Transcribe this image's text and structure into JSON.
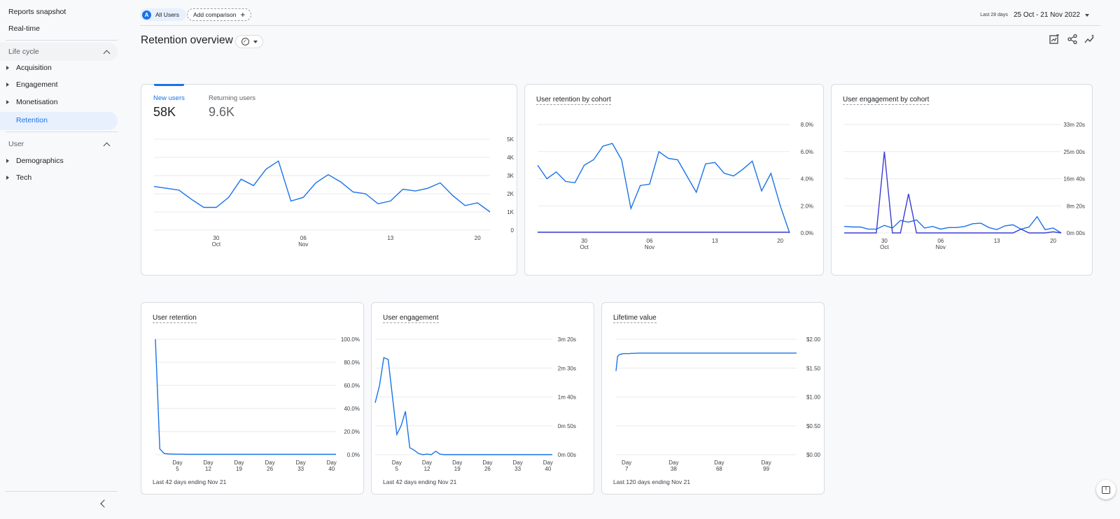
{
  "sidebar": {
    "top_items": [
      {
        "label": "Reports snapshot"
      },
      {
        "label": "Real-time"
      }
    ],
    "lifecycle": {
      "label": "Life cycle",
      "items": [
        {
          "label": "Acquisition"
        },
        {
          "label": "Engagement"
        },
        {
          "label": "Monetisation"
        },
        {
          "label": "Retention"
        }
      ]
    },
    "user": {
      "label": "User",
      "items": [
        {
          "label": "Demographics"
        },
        {
          "label": "Tech"
        }
      ]
    },
    "active_item": "Retention"
  },
  "header": {
    "segment_letter": "A",
    "segment_label": "All Users",
    "add_comparison": "Add comparison",
    "date_prefix": "Last 28 days",
    "date_range": "25 Oct - 21 Nov 2022"
  },
  "page": {
    "title": "Retention overview"
  },
  "icons": [
    "customize-report-icon",
    "share-icon",
    "insights-icon"
  ],
  "colors": {
    "accent": "#1a73e8",
    "secondary_series": "#3b3bd6",
    "active_nav_bg": "#e8f0fe"
  },
  "cards": {
    "users": {
      "tabs": [
        {
          "label": "New users",
          "value": "58K"
        },
        {
          "label": "Returning users",
          "value": "9.6K"
        }
      ],
      "active_tab": "New users"
    },
    "cohort_retention": {
      "title": "User retention by cohort"
    },
    "cohort_engagement": {
      "title": "User engagement by cohort"
    },
    "user_retention": {
      "title": "User retention",
      "footer": "Last 42 days ending Nov 21"
    },
    "user_engagement": {
      "title": "User engagement",
      "footer": "Last 42 days ending Nov 21"
    },
    "lifetime_value": {
      "title": "Lifetime value",
      "footer": "Last 120 days ending Nov 21"
    }
  },
  "chart_data": [
    {
      "id": "new_users",
      "type": "line",
      "title": "",
      "x_ticks": [
        {
          "i": 5,
          "label": "30",
          "sub": "Oct"
        },
        {
          "i": 12,
          "label": "06",
          "sub": "Nov"
        },
        {
          "i": 19,
          "label": "13",
          "sub": ""
        },
        {
          "i": 26,
          "label": "20",
          "sub": ""
        }
      ],
      "y_ticks": [
        {
          "v": 0,
          "label": "0"
        },
        {
          "v": 1000,
          "label": "1K"
        },
        {
          "v": 2000,
          "label": "2K"
        },
        {
          "v": 3000,
          "label": "3K"
        },
        {
          "v": 4000,
          "label": "4K"
        },
        {
          "v": 5000,
          "label": "5K"
        }
      ],
      "ylim": [
        0,
        5000
      ],
      "series": [
        {
          "values": [
            2400,
            2300,
            2200,
            1700,
            1250,
            1250,
            1800,
            2800,
            2450,
            3350,
            3800,
            1600,
            1800,
            2600,
            3050,
            2650,
            2100,
            2000,
            1450,
            1600,
            2250,
            2150,
            2300,
            2600,
            1900,
            1350,
            1500,
            1000
          ]
        }
      ]
    },
    {
      "id": "cohort_retention",
      "type": "line",
      "title": "User retention by cohort",
      "x_ticks": [
        {
          "i": 5,
          "label": "30",
          "sub": "Oct"
        },
        {
          "i": 12,
          "label": "06",
          "sub": "Nov"
        },
        {
          "i": 19,
          "label": "13",
          "sub": ""
        },
        {
          "i": 26,
          "label": "20",
          "sub": ""
        }
      ],
      "y_ticks": [
        {
          "v": 0,
          "label": "0.0%"
        },
        {
          "v": 2,
          "label": "2.0%"
        },
        {
          "v": 4,
          "label": "4.0%"
        },
        {
          "v": 6,
          "label": "6.0%"
        },
        {
          "v": 8,
          "label": "8.0%"
        }
      ],
      "ylim": [
        0,
        8
      ],
      "series": [
        {
          "values": [
            5.0,
            4.0,
            4.5,
            3.8,
            3.7,
            5.0,
            5.4,
            6.4,
            6.6,
            5.4,
            1.8,
            3.5,
            3.6,
            6.0,
            5.5,
            5.4,
            4.2,
            3.0,
            5.1,
            5.2,
            4.4,
            4.2,
            4.7,
            5.3,
            3.1,
            4.4,
            2.0,
            0
          ]
        },
        {
          "values": [
            0.05,
            0.05,
            0.05,
            0.05,
            0.05,
            0.05,
            0.05,
            0.05,
            0.05,
            0.05,
            0.05,
            0.05,
            0.05,
            0.05,
            0.05,
            0.05,
            0.05,
            0.05,
            0.05,
            0.05,
            0.05,
            0.05,
            0.05,
            0.05,
            0.05,
            0.05,
            0.05,
            0.05
          ]
        }
      ]
    },
    {
      "id": "cohort_engagement",
      "type": "line",
      "title": "User engagement by cohort",
      "x_ticks": [
        {
          "i": 5,
          "label": "30",
          "sub": "Oct"
        },
        {
          "i": 12,
          "label": "06",
          "sub": "Nov"
        },
        {
          "i": 19,
          "label": "13",
          "sub": ""
        },
        {
          "i": 26,
          "label": "20",
          "sub": ""
        }
      ],
      "y_ticks": [
        {
          "v": 0,
          "label": "0m 00s"
        },
        {
          "v": 500,
          "label": "8m 20s"
        },
        {
          "v": 1000,
          "label": "16m 40s"
        },
        {
          "v": 1500,
          "label": "25m 00s"
        },
        {
          "v": 2000,
          "label": "33m 20s"
        }
      ],
      "ylim": [
        0,
        2000
      ],
      "series": [
        {
          "values": [
            120,
            110,
            110,
            70,
            70,
            140,
            90,
            230,
            200,
            240,
            90,
            120,
            70,
            100,
            100,
            120,
            170,
            180,
            100,
            60,
            130,
            150,
            70,
            110,
            300,
            60,
            90,
            0
          ]
        },
        {
          "values": [
            0,
            0,
            0,
            0,
            0,
            1500,
            0,
            0,
            720,
            0,
            0,
            0,
            0,
            0,
            0,
            0,
            0,
            0,
            0,
            0,
            0,
            0,
            70,
            0,
            0,
            0,
            20,
            0
          ]
        }
      ]
    },
    {
      "id": "user_retention",
      "type": "line",
      "title": "User retention",
      "x_ticks": [
        {
          "i": 5,
          "label": "Day",
          "sub": "5"
        },
        {
          "i": 12,
          "label": "Day",
          "sub": "12"
        },
        {
          "i": 19,
          "label": "Day",
          "sub": "19"
        },
        {
          "i": 26,
          "label": "Day",
          "sub": "26"
        },
        {
          "i": 33,
          "label": "Day",
          "sub": "33"
        },
        {
          "i": 40,
          "label": "Day",
          "sub": "40"
        }
      ],
      "y_ticks": [
        {
          "v": 0,
          "label": "0.0%"
        },
        {
          "v": 20,
          "label": "20.0%"
        },
        {
          "v": 40,
          "label": "40.0%"
        },
        {
          "v": 60,
          "label": "60.0%"
        },
        {
          "v": 80,
          "label": "80.0%"
        },
        {
          "v": 100,
          "label": "100.0%"
        }
      ],
      "ylim": [
        0,
        100
      ],
      "x_count": 42,
      "series": [
        {
          "values": [
            100,
            5,
            1,
            0.6,
            0.5,
            0.4,
            0.4,
            0.3,
            0.3,
            0.3,
            0.3,
            0.3,
            0.3,
            0.3,
            0.3,
            0.3,
            0.3,
            0.3,
            0.3,
            0.3,
            0.3,
            0.3,
            0.3,
            0.3,
            0.3,
            0.3,
            0.3,
            0.3,
            0.3,
            0.3,
            0.3,
            0.3,
            0.3,
            0.3,
            0.3,
            0.3,
            0.3,
            0.3,
            0.3,
            0.3,
            0.3,
            0.3
          ]
        }
      ]
    },
    {
      "id": "user_engagement",
      "type": "line",
      "title": "User engagement",
      "x_ticks": [
        {
          "i": 5,
          "label": "Day",
          "sub": "5"
        },
        {
          "i": 12,
          "label": "Day",
          "sub": "12"
        },
        {
          "i": 19,
          "label": "Day",
          "sub": "19"
        },
        {
          "i": 26,
          "label": "Day",
          "sub": "26"
        },
        {
          "i": 33,
          "label": "Day",
          "sub": "33"
        },
        {
          "i": 40,
          "label": "Day",
          "sub": "40"
        }
      ],
      "y_ticks": [
        {
          "v": 0,
          "label": "0m 00s"
        },
        {
          "v": 50,
          "label": "0m 50s"
        },
        {
          "v": 100,
          "label": "1m 40s"
        },
        {
          "v": 150,
          "label": "2m 30s"
        },
        {
          "v": 200,
          "label": "3m 20s"
        }
      ],
      "ylim": [
        0,
        200
      ],
      "x_count": 42,
      "series": [
        {
          "values": [
            90,
            120,
            168,
            165,
            100,
            35,
            50,
            75,
            12,
            8,
            2,
            0,
            1,
            0,
            6,
            1,
            0,
            0,
            0,
            0,
            0,
            0,
            0,
            0,
            0,
            0,
            0,
            0,
            0,
            0,
            0,
            0,
            0,
            0,
            0,
            0,
            0,
            0,
            0,
            0,
            0,
            0
          ]
        }
      ]
    },
    {
      "id": "lifetime_value",
      "type": "line",
      "title": "Lifetime value",
      "x_ticks": [
        {
          "i": 7,
          "label": "Day",
          "sub": "7"
        },
        {
          "i": 38,
          "label": "Day",
          "sub": "38"
        },
        {
          "i": 68,
          "label": "Day",
          "sub": "68"
        },
        {
          "i": 99,
          "label": "Day",
          "sub": "99"
        }
      ],
      "y_ticks": [
        {
          "v": 0,
          "label": "$0.00"
        },
        {
          "v": 0.5,
          "label": "$0.50"
        },
        {
          "v": 1,
          "label": "$1.00"
        },
        {
          "v": 1.5,
          "label": "$1.50"
        },
        {
          "v": 2,
          "label": "$2.00"
        }
      ],
      "ylim": [
        0,
        2
      ],
      "x_count": 120,
      "series": [
        {
          "values": [
            1.45,
            1.7,
            1.73,
            1.74,
            1.745,
            1.75,
            1.75,
            1.75,
            1.75,
            1.75,
            1.755,
            1.755,
            1.755,
            1.755,
            1.76,
            1.76,
            1.76,
            1.76,
            1.76,
            1.76,
            1.76,
            1.76,
            1.76,
            1.76,
            1.76,
            1.76,
            1.76,
            1.76,
            1.76,
            1.76,
            1.76,
            1.76,
            1.76,
            1.76,
            1.76,
            1.76,
            1.76,
            1.76,
            1.76,
            1.76,
            1.76,
            1.76,
            1.76,
            1.76,
            1.76,
            1.76,
            1.76,
            1.76,
            1.76,
            1.76,
            1.76,
            1.76,
            1.76,
            1.76,
            1.76,
            1.76,
            1.76,
            1.76,
            1.76,
            1.76,
            1.76,
            1.76,
            1.76,
            1.76,
            1.76,
            1.76,
            1.76,
            1.76,
            1.76,
            1.76,
            1.76,
            1.76,
            1.76,
            1.76,
            1.76,
            1.76,
            1.76,
            1.76,
            1.76,
            1.76,
            1.76,
            1.76,
            1.76,
            1.76,
            1.76,
            1.76,
            1.76,
            1.76,
            1.76,
            1.76,
            1.76,
            1.76,
            1.76,
            1.76,
            1.76,
            1.76,
            1.76,
            1.76,
            1.76,
            1.76,
            1.76,
            1.76,
            1.76,
            1.76,
            1.76,
            1.76,
            1.76,
            1.76,
            1.76,
            1.76,
            1.76,
            1.76,
            1.76,
            1.76,
            1.76,
            1.76,
            1.76,
            1.76,
            1.76,
            1.76
          ]
        }
      ]
    }
  ]
}
